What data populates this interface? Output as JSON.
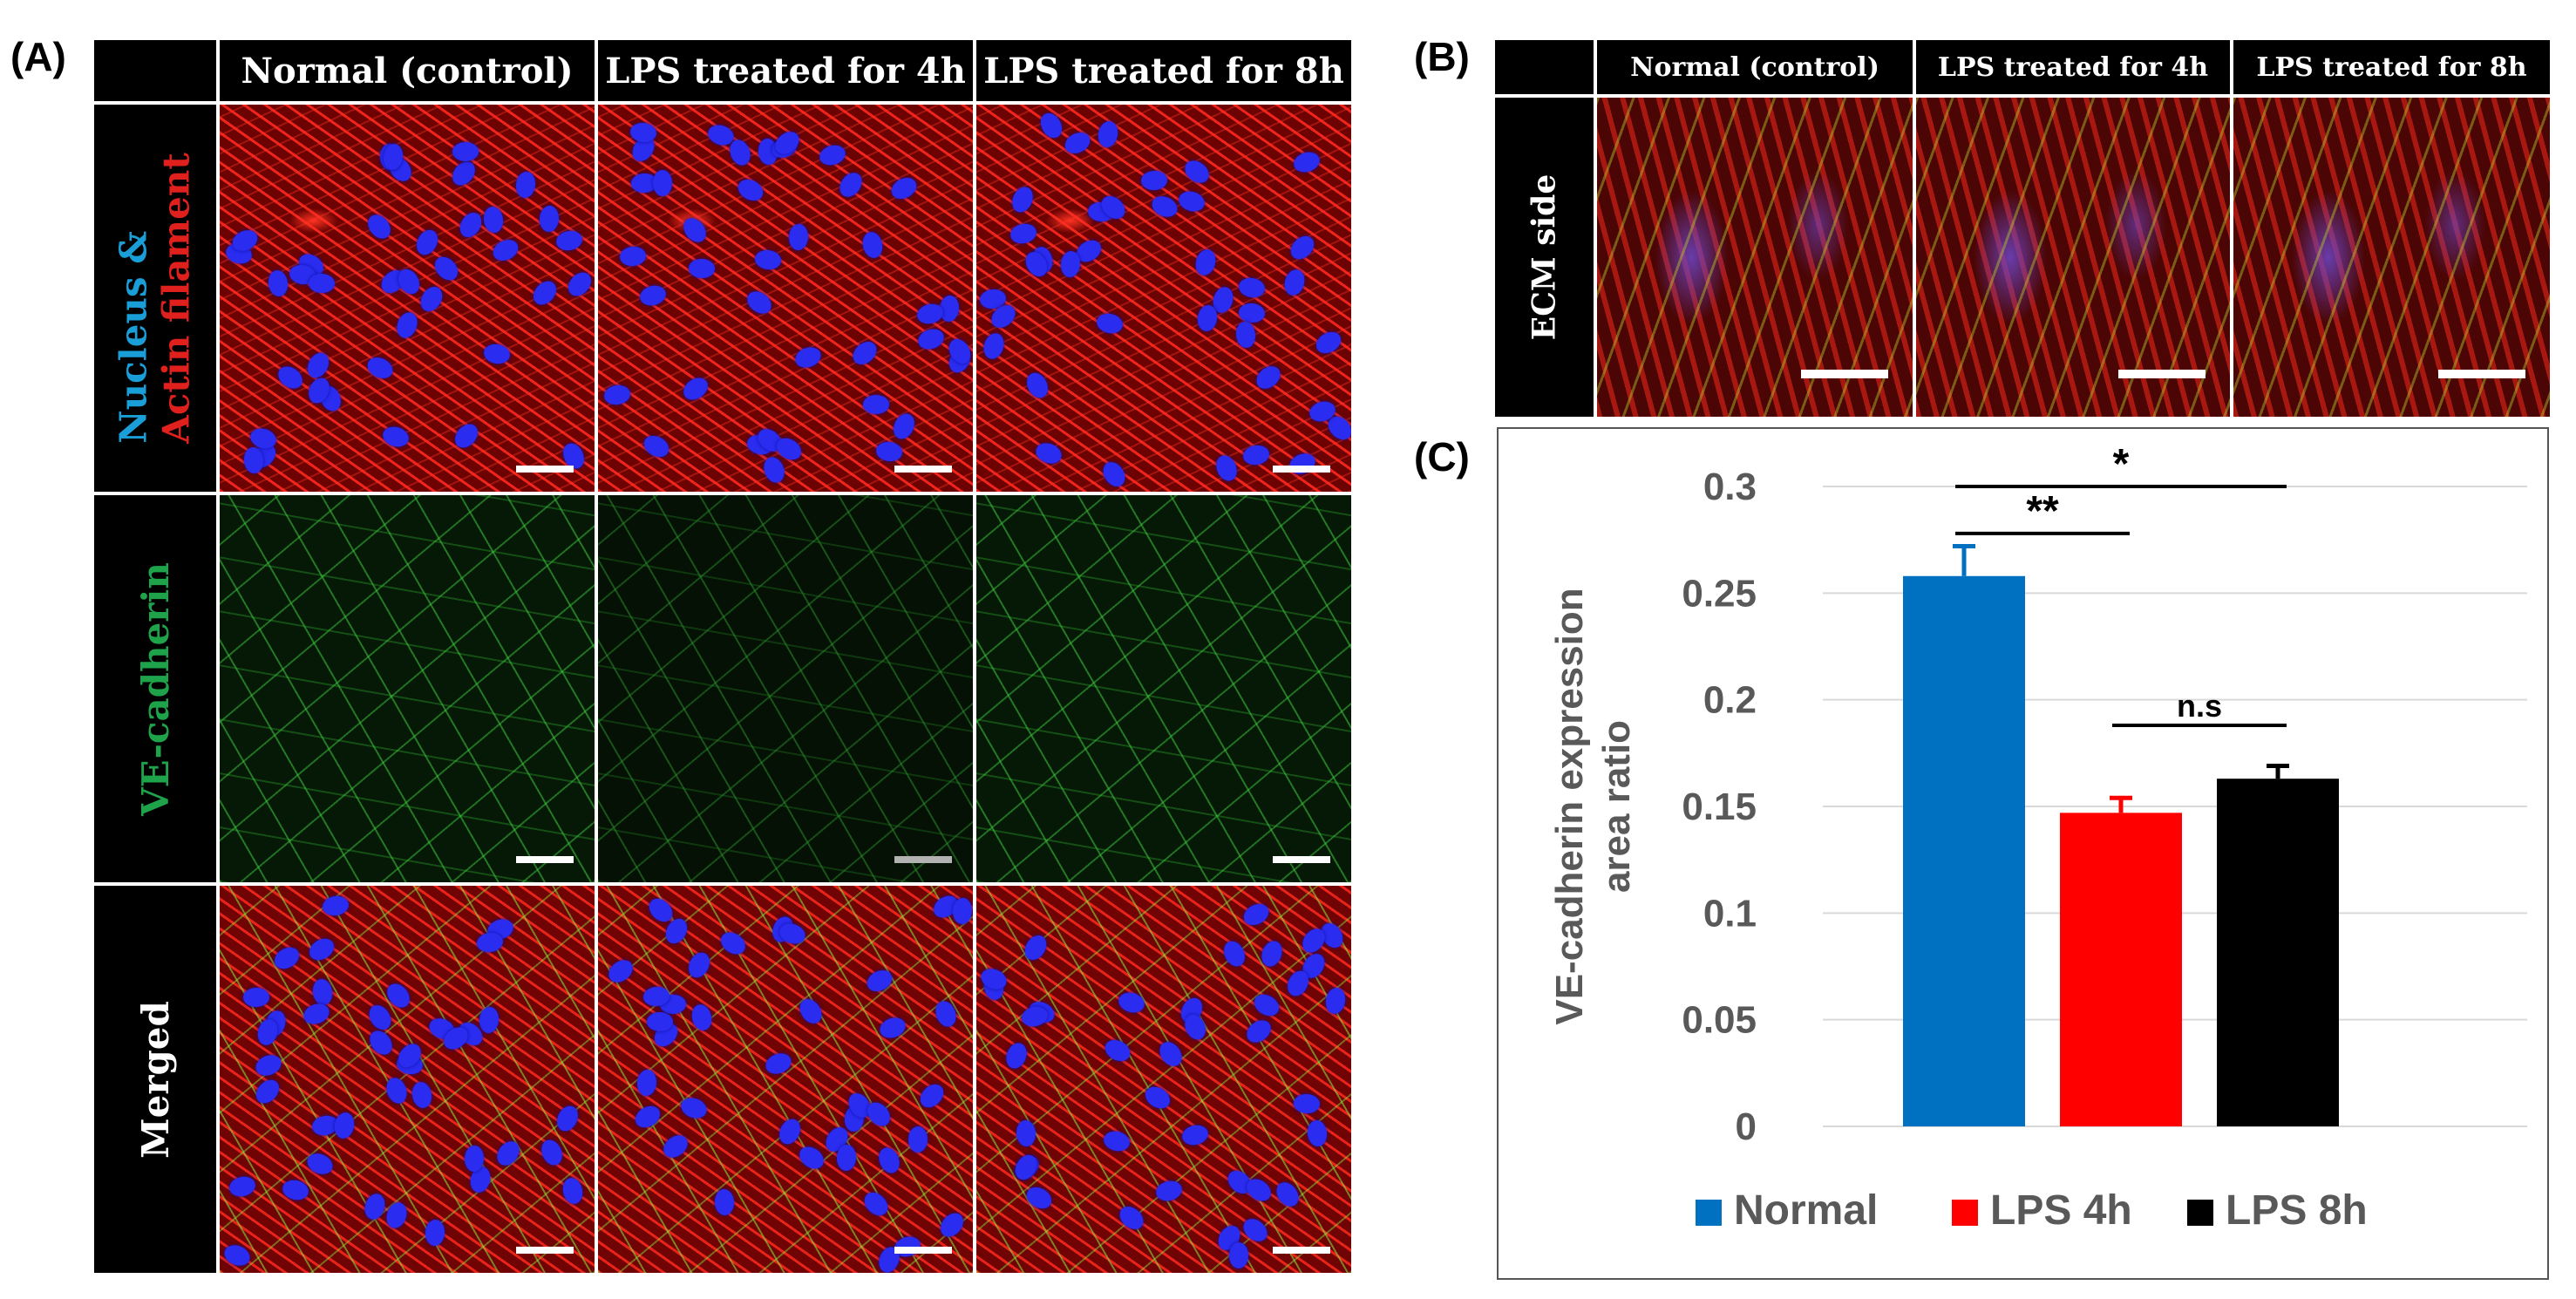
{
  "panel_labels": {
    "a": "(A)",
    "b": "(B)",
    "c": "(C)"
  },
  "panel_a": {
    "columns": [
      "Normal (control)",
      "LPS treated for 4h",
      "LPS treated for 8h"
    ],
    "rows": [
      {
        "label_part1": "Nucleus &",
        "label_part2": "Actin filament",
        "color1": "#1a9ed8",
        "color2": "#e0201c"
      },
      {
        "label_part1": "VE-cadherin",
        "color1": "#1fa34a"
      },
      {
        "label_part1": "Merged",
        "color1": "#ffffff"
      }
    ]
  },
  "panel_b": {
    "columns": [
      "Normal (control)",
      "LPS treated for 4h",
      "LPS treated for 8h"
    ],
    "row_label": "ECM side"
  },
  "chart_data": {
    "type": "bar",
    "categories": [
      "Normal",
      "LPS 4h",
      "LPS 8h"
    ],
    "values": [
      0.258,
      0.147,
      0.163
    ],
    "errors": [
      0.014,
      0.007,
      0.006
    ],
    "colors": [
      "#0070c0",
      "#ff0000",
      "#000000"
    ],
    "ylabel_line1": "VE-cadherin expression",
    "ylabel_line2": "area ratio",
    "ylim": [
      0,
      0.3
    ],
    "yticks": [
      0,
      0.05,
      0.1,
      0.15,
      0.2,
      0.25,
      0.3
    ],
    "ytick_labels": [
      "0",
      "0.05",
      "0.1",
      "0.15",
      "0.2",
      "0.25",
      "0.3"
    ],
    "grid": true,
    "legend": [
      "Normal",
      "LPS 4h",
      "LPS 8h"
    ],
    "legend_position": "bottom",
    "significance": [
      {
        "from": 0,
        "to": 2,
        "label": "*",
        "level": 0.3
      },
      {
        "from": 0,
        "to": 1,
        "label": "**",
        "level": 0.278
      },
      {
        "from": 1,
        "to": 2,
        "label": "n.s",
        "level": 0.188
      }
    ]
  }
}
